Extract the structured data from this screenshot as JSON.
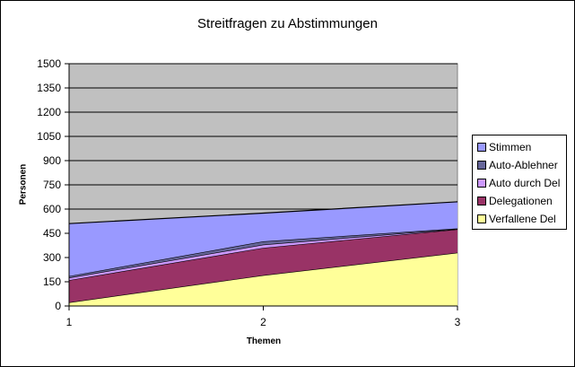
{
  "chart_data": {
    "type": "area",
    "stacked": true,
    "title": "Streitfragen zu Abstimmungen",
    "xlabel": "Themen",
    "ylabel": "Personen",
    "x": [
      1,
      2,
      3
    ],
    "ylim": [
      0,
      1500
    ],
    "yticks": [
      0,
      150,
      300,
      450,
      600,
      750,
      900,
      1050,
      1200,
      1350,
      1500
    ],
    "grid": true,
    "legend_position": "right",
    "plot_background": "#C0C0C0",
    "series": [
      {
        "name": "Verfallene Del",
        "color": "#FFFF99",
        "values": [
          22,
          190,
          330
        ]
      },
      {
        "name": "Delegationen",
        "color": "#993366",
        "values": [
          138,
          170,
          145
        ]
      },
      {
        "name": "Auto durch Del",
        "color": "#CC99FF",
        "values": [
          15,
          20,
          2
        ]
      },
      {
        "name": "Auto-Ablehner",
        "color": "#666699",
        "values": [
          10,
          20,
          3
        ]
      },
      {
        "name": "Stimmen",
        "color": "#9999FF",
        "values": [
          325,
          175,
          165
        ]
      }
    ]
  },
  "legend": {
    "items": [
      {
        "label": "Stimmen",
        "color": "#9999FF"
      },
      {
        "label": "Auto-Ablehner",
        "color": "#666699"
      },
      {
        "label": "Auto durch Del",
        "color": "#CC99FF"
      },
      {
        "label": "Delegationen",
        "color": "#993366"
      },
      {
        "label": "Verfallene Del",
        "color": "#FFFF99"
      }
    ]
  }
}
